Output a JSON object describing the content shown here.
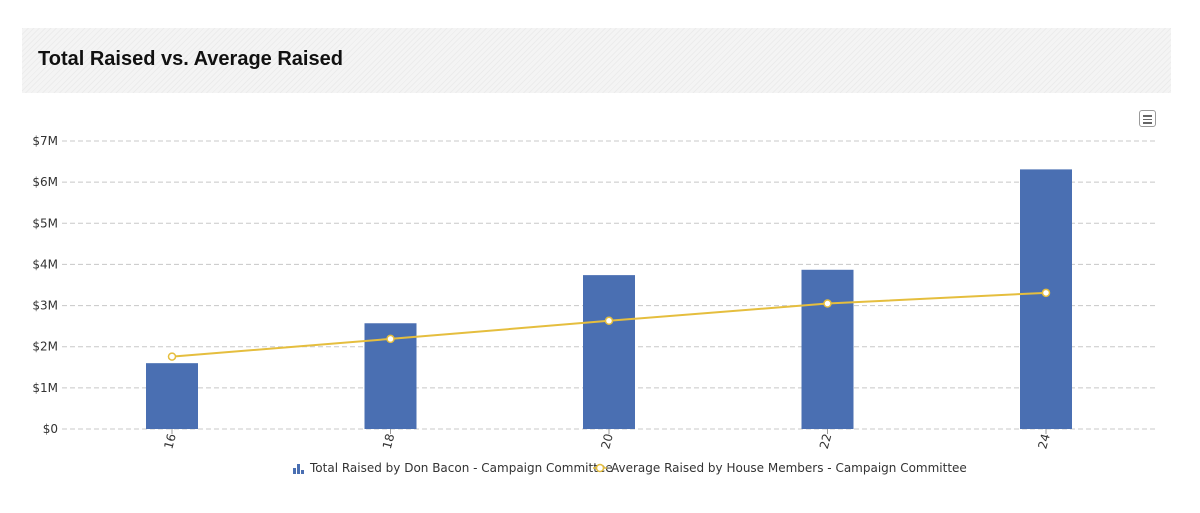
{
  "title": "Total Raised vs. Average Raised",
  "colors": {
    "bar": "#4a6fb2",
    "line": "#e5be3e",
    "grid": "#c8c8c8"
  },
  "chart_data": {
    "type": "bar",
    "categories": [
      "16",
      "18",
      "20",
      "22",
      "24"
    ],
    "ylim": [
      0,
      7000000
    ],
    "y_ticks": [
      0,
      1000000,
      2000000,
      3000000,
      4000000,
      5000000,
      6000000,
      7000000
    ],
    "y_tick_labels": [
      "$0",
      "$1M",
      "$2M",
      "$3M",
      "$4M",
      "$5M",
      "$6M",
      "$7M"
    ],
    "grid": true,
    "legend_position": "bottom",
    "series": [
      {
        "name": "Total Raised by Don Bacon - Campaign Committee",
        "type": "bar",
        "values": [
          1600000,
          2570000,
          3740000,
          3870000,
          6310000
        ]
      },
      {
        "name": "Average Raised by House Members - Campaign Committee",
        "type": "line",
        "values": [
          1760000,
          2190000,
          2630000,
          3050000,
          3310000
        ]
      }
    ]
  }
}
